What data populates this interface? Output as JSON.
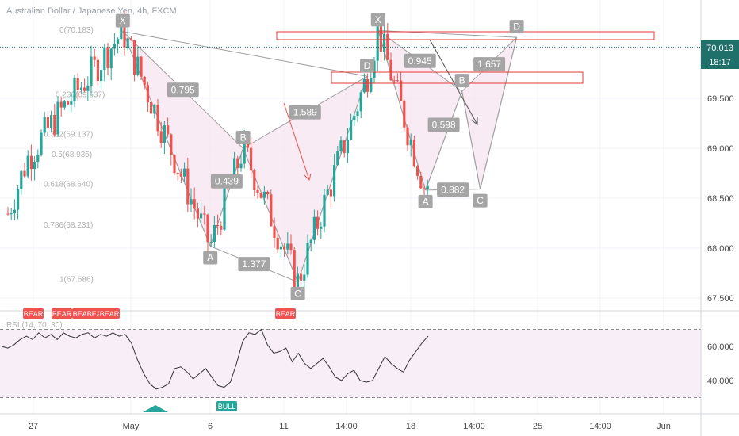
{
  "title": "Australian Dollar / Japanese Yen, 4h, FXCM",
  "colors": {
    "up": "#26a69a",
    "down": "#ef5350",
    "pattern_fill": "#f6e3ee",
    "pattern_line": "#9e9e9e",
    "label_bg": "#a5a5a5",
    "price_tag": "#1f6f6a",
    "rsi_band": "#f7eef8",
    "rsi_line": "#333333"
  },
  "price_tag": {
    "value": "70.013",
    "countdown": "18:17"
  },
  "chart_data": [
    {
      "type": "candlestick",
      "title": "Australian Dollar / Japanese Yen, 4h, FXCM",
      "ylim": [
        67.4,
        70.5
      ],
      "y_ticks": [
        "70.000",
        "69.500",
        "69.000",
        "68.500",
        "68.000",
        "67.500"
      ],
      "x_ticks": [
        "27",
        "May",
        "6",
        "11",
        "14:00",
        "18",
        "14:00",
        "25",
        "14:00",
        "Jun"
      ],
      "last_value": 70.013,
      "fib_levels": [
        "0(70.183)",
        "0.236(69.537)",
        "0.382(69.137)",
        "0.5(68.935)",
        "0.618(68.640)",
        "0.786(68.231)",
        "1(67.686)"
      ],
      "patterns": [
        {
          "points": [
            {
              "name": "X",
              "x": 0.13,
              "y": 70.17
            },
            {
              "name": "A",
              "x": 0.37,
              "y": 68.02
            },
            {
              "name": "B",
              "x": 0.46,
              "y": 69.0
            },
            {
              "name": "C",
              "x": 0.61,
              "y": 67.66
            },
            {
              "name": "D",
              "x": 0.8,
              "y": 69.72
            }
          ],
          "ratios": [
            "0.795",
            "0.439",
            "1.589",
            "1.377"
          ]
        },
        {
          "points": [
            {
              "name": "X",
              "x": 0.83,
              "y": 70.18
            },
            {
              "name": "A",
              "x": 0.96,
              "y": 68.58
            },
            {
              "name": "B",
              "x": 1.06,
              "y": 69.57
            },
            {
              "name": "C",
              "x": 1.11,
              "y": 68.59
            },
            {
              "name": "D",
              "x": 1.21,
              "y": 70.11
            }
          ],
          "ratios": [
            "0.945",
            "0.598",
            "1.657",
            "0.882"
          ]
        }
      ]
    },
    {
      "type": "line",
      "title": "RSI (14, 70, 30)",
      "ylim": [
        30,
        76
      ],
      "y_ticks": [
        "60.000",
        "40.000"
      ],
      "markers": [
        "BEAR",
        "BEAR",
        "BEAR",
        "BEAR",
        "BEAR",
        "BULL",
        "BEAR"
      ],
      "values": [
        60,
        59,
        61,
        64,
        66,
        64,
        68,
        65,
        67,
        64,
        68,
        66,
        65,
        67,
        68,
        65,
        67,
        66,
        68,
        66,
        67,
        62,
        52,
        44,
        38,
        35,
        36,
        38,
        47,
        48,
        45,
        41,
        44,
        47,
        42,
        37,
        36,
        39,
        50,
        63,
        68,
        67,
        70,
        61,
        56,
        57,
        59,
        51,
        56,
        50,
        47,
        50,
        53,
        48,
        42,
        40,
        44,
        46,
        40,
        39,
        40,
        47,
        54,
        50,
        47,
        45,
        52,
        57,
        62,
        66
      ]
    }
  ]
}
